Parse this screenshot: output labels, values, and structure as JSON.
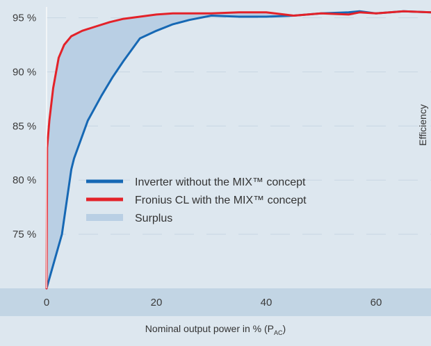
{
  "chart_data": {
    "type": "line",
    "xlabel": "Nominal output power in % (P",
    "xlabel_sub": "AC",
    "xlabel_end": ")",
    "ylabel": "Efficiency",
    "xlim": [
      0,
      70
    ],
    "ylim": [
      70,
      96
    ],
    "x_ticks": [
      0,
      20,
      40,
      60
    ],
    "x_tick_labels": [
      "0",
      "20",
      "40",
      "60"
    ],
    "y_ticks": [
      95,
      90,
      85,
      80,
      75
    ],
    "y_tick_labels": [
      "95 %",
      "90 %",
      "85 %",
      "80 %",
      "75 %"
    ],
    "grid": true,
    "legend_position": "center-left",
    "colors": {
      "background": "#dde7ef",
      "xaxis_band": "#c2d5e4",
      "surplus": "#b9cfe4",
      "inverter": "#1668b4",
      "fronius": "#e32229",
      "grid": "#c8d6e2"
    },
    "legend": {
      "inverter": "Inverter without the MIX™ concept",
      "fronius": "Fronius CL with the MIX™ concept",
      "surplus": "Surplus"
    },
    "series": [
      {
        "name": "Inverter without the MIX™ concept",
        "color": "#1668b4",
        "x": [
          0,
          2.8,
          4.5,
          5,
          7.5,
          10,
          12,
          14,
          17,
          20,
          23,
          26,
          30,
          35,
          40,
          45,
          50,
          55,
          57,
          60,
          65,
          70
        ],
        "y": [
          70,
          75,
          81,
          82,
          85.5,
          87.8,
          89.5,
          91,
          93.1,
          93.8,
          94.4,
          94.8,
          95.2,
          95.1,
          95.1,
          95.2,
          95.4,
          95.5,
          95.6,
          95.4,
          95.6,
          95.5
        ]
      },
      {
        "name": "Fronius CL with the MIX™ concept",
        "color": "#e32229",
        "x": [
          0,
          0.1,
          0.5,
          1.2,
          2.2,
          3.2,
          4.5,
          6.5,
          9,
          11.5,
          14,
          17,
          20,
          23,
          26,
          30,
          35,
          40,
          45,
          50,
          55,
          57,
          60,
          65,
          70
        ],
        "y": [
          70,
          83,
          85.5,
          88.5,
          91.3,
          92.5,
          93.3,
          93.8,
          94.2,
          94.6,
          94.9,
          95.1,
          95.3,
          95.4,
          95.4,
          95.4,
          95.5,
          95.5,
          95.2,
          95.4,
          95.3,
          95.5,
          95.4,
          95.6,
          95.5
        ]
      }
    ]
  }
}
